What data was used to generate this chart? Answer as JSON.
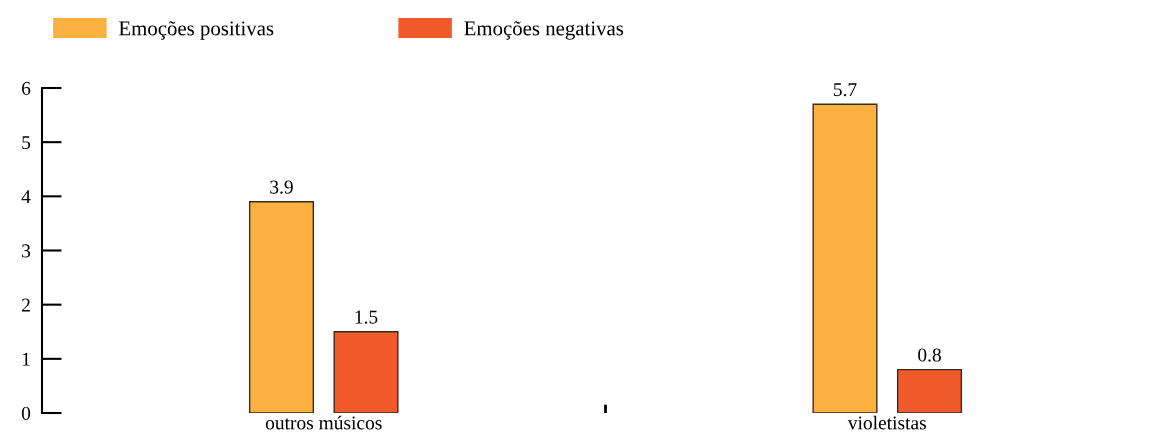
{
  "chart_data": {
    "type": "bar",
    "categories": [
      "outros músicos",
      "violetistas"
    ],
    "series": [
      {
        "name": "Emoções positivas",
        "color": "#fbb040",
        "values": [
          3.9,
          5.7
        ]
      },
      {
        "name": "Emoções negativas",
        "color": "#f15a2b",
        "values": [
          1.5,
          0.8
        ]
      }
    ],
    "ylim": [
      0,
      6
    ],
    "yticks": [
      0,
      1,
      2,
      3,
      4,
      5,
      6
    ],
    "data_labels": true,
    "legend": "top left",
    "grid": false
  }
}
